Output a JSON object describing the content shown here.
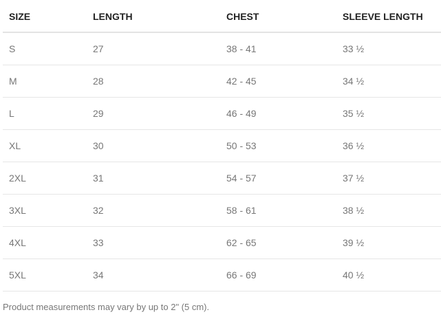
{
  "table": {
    "headers": [
      "SIZE",
      "LENGTH",
      "CHEST",
      "SLEEVE LENGTH"
    ],
    "rows": [
      [
        "S",
        "27",
        "38 - 41",
        "33 ½"
      ],
      [
        "M",
        "28",
        "42 - 45",
        "34 ½"
      ],
      [
        "L",
        "29",
        "46 - 49",
        "35 ½"
      ],
      [
        "XL",
        "30",
        "50 - 53",
        "36 ½"
      ],
      [
        "2XL",
        "31",
        "54 - 57",
        "37 ½"
      ],
      [
        "3XL",
        "32",
        "58 - 61",
        "38 ½"
      ],
      [
        "4XL",
        "33",
        "62 - 65",
        "39 ½"
      ],
      [
        "5XL",
        "34",
        "66 - 69",
        "40 ½"
      ]
    ]
  },
  "footnote": "Product measurements may vary by up to 2\" (5 cm)."
}
